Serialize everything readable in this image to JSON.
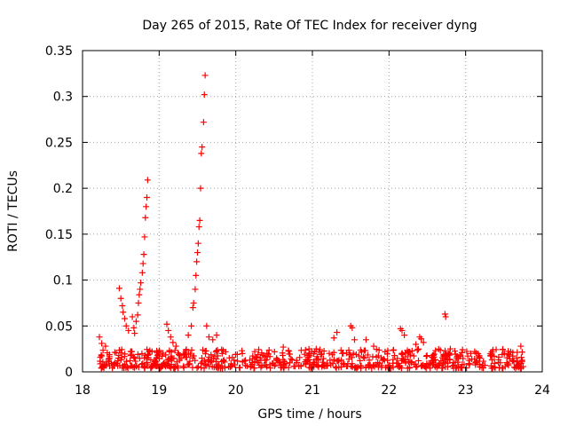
{
  "chart_data": {
    "type": "scatter",
    "title": "Day 265 of 2015, Rate Of TEC Index for receiver dyng",
    "xlabel": "GPS time / hours",
    "ylabel": "ROTI / TECUs",
    "xlim": [
      18,
      24
    ],
    "ylim": [
      0,
      0.35
    ],
    "x_ticks": [
      18,
      19,
      20,
      21,
      22,
      23,
      24
    ],
    "y_ticks": [
      0,
      0.05,
      0.1,
      0.15,
      0.2,
      0.25,
      0.3,
      0.35
    ],
    "x_tick_labels": [
      "18",
      "19",
      "20",
      "21",
      "22",
      "23",
      "24"
    ],
    "y_tick_labels": [
      "0",
      "0.05",
      "0.1",
      "0.15",
      "0.2",
      "0.25",
      "0.3",
      "0.35"
    ],
    "grid": true,
    "marker": "+",
    "color": "#ff0000",
    "series": [
      {
        "name": "ROTI",
        "baseline": {
          "x_range": [
            18.22,
            23.75
          ],
          "y_range": [
            0.004,
            0.025
          ]
        },
        "points": [
          [
            18.22,
            0.038
          ],
          [
            18.25,
            0.031
          ],
          [
            18.3,
            0.028
          ],
          [
            18.48,
            0.091
          ],
          [
            18.5,
            0.08
          ],
          [
            18.52,
            0.072
          ],
          [
            18.53,
            0.065
          ],
          [
            18.55,
            0.058
          ],
          [
            18.57,
            0.05
          ],
          [
            18.6,
            0.045
          ],
          [
            18.65,
            0.06
          ],
          [
            18.67,
            0.048
          ],
          [
            18.68,
            0.042
          ],
          [
            18.7,
            0.055
          ],
          [
            18.72,
            0.062
          ],
          [
            18.73,
            0.075
          ],
          [
            18.74,
            0.084
          ],
          [
            18.75,
            0.09
          ],
          [
            18.76,
            0.097
          ],
          [
            18.78,
            0.108
          ],
          [
            18.79,
            0.118
          ],
          [
            18.8,
            0.128
          ],
          [
            18.81,
            0.147
          ],
          [
            18.82,
            0.168
          ],
          [
            18.83,
            0.18
          ],
          [
            18.84,
            0.19
          ],
          [
            18.85,
            0.209
          ],
          [
            19.1,
            0.052
          ],
          [
            19.12,
            0.045
          ],
          [
            19.15,
            0.038
          ],
          [
            19.18,
            0.032
          ],
          [
            19.22,
            0.028
          ],
          [
            19.38,
            0.04
          ],
          [
            19.42,
            0.05
          ],
          [
            19.44,
            0.07
          ],
          [
            19.45,
            0.075
          ],
          [
            19.47,
            0.09
          ],
          [
            19.48,
            0.105
          ],
          [
            19.49,
            0.12
          ],
          [
            19.5,
            0.13
          ],
          [
            19.51,
            0.14
          ],
          [
            19.52,
            0.158
          ],
          [
            19.53,
            0.165
          ],
          [
            19.54,
            0.2
          ],
          [
            19.55,
            0.238
          ],
          [
            19.56,
            0.245
          ],
          [
            19.58,
            0.272
          ],
          [
            19.59,
            0.302
          ],
          [
            19.6,
            0.323
          ],
          [
            19.62,
            0.05
          ],
          [
            19.65,
            0.038
          ],
          [
            19.7,
            0.035
          ],
          [
            19.75,
            0.04
          ],
          [
            20.62,
            0.027
          ],
          [
            21.05,
            0.025
          ],
          [
            21.28,
            0.037
          ],
          [
            21.32,
            0.043
          ],
          [
            21.5,
            0.05
          ],
          [
            21.52,
            0.048
          ],
          [
            21.55,
            0.035
          ],
          [
            21.7,
            0.035
          ],
          [
            21.8,
            0.028
          ],
          [
            22.15,
            0.047
          ],
          [
            22.17,
            0.045
          ],
          [
            22.2,
            0.04
          ],
          [
            22.35,
            0.03
          ],
          [
            22.4,
            0.038
          ],
          [
            22.42,
            0.036
          ],
          [
            22.45,
            0.032
          ],
          [
            22.73,
            0.063
          ],
          [
            22.74,
            0.06
          ],
          [
            22.8,
            0.025
          ],
          [
            23.72,
            0.028
          ]
        ]
      }
    ]
  }
}
